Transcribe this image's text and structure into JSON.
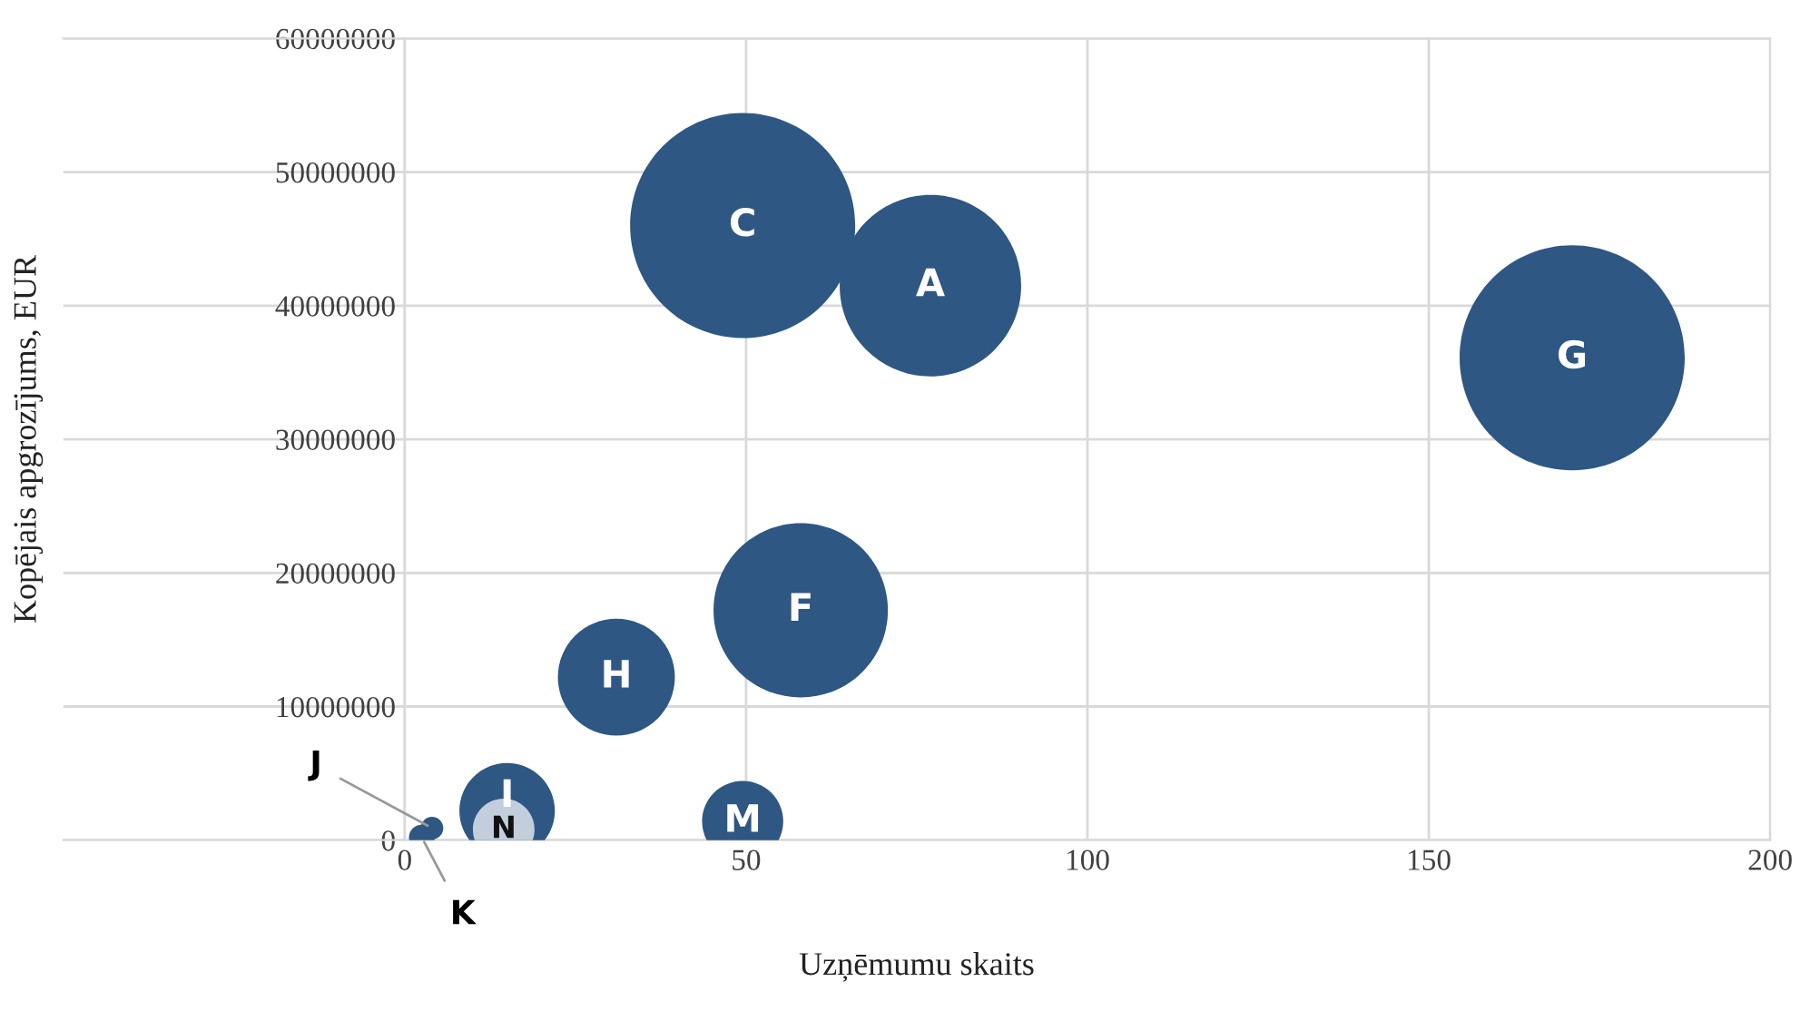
{
  "chart_data": {
    "type": "bubble",
    "xlabel": "Uzņēmumu skaits",
    "ylabel": "Kopējais apgrozījums, EUR",
    "xlim": [
      -50,
      200
    ],
    "xticks": [
      0,
      50,
      100,
      150,
      200
    ],
    "ylim": [
      0,
      60000000
    ],
    "yticks": [
      0,
      10000000,
      20000000,
      30000000,
      40000000,
      50000000,
      60000000
    ],
    "grid": true,
    "legend": false,
    "series": [
      {
        "name": "C",
        "color": "#2e5783",
        "x": [
          49.5
        ],
        "values": [
          46000000
        ],
        "sizes": [
          1
        ]
      },
      {
        "name": "A",
        "color": "#2e5783",
        "x": [
          77
        ],
        "values": [
          41500000
        ],
        "sizes": [
          0.65
        ]
      },
      {
        "name": "G",
        "color": "#2e5783",
        "x": [
          171
        ],
        "values": [
          36100000
        ],
        "sizes": [
          1
        ]
      },
      {
        "name": "F",
        "color": "#2e5783",
        "x": [
          58
        ],
        "values": [
          17200000
        ],
        "sizes": [
          0.6
        ]
      },
      {
        "name": "H",
        "color": "#2e5783",
        "x": [
          31
        ],
        "values": [
          12200000
        ],
        "sizes": [
          0.27
        ]
      },
      {
        "name": "I",
        "color": "#2e5783",
        "x": [
          15
        ],
        "values": [
          2200000
        ],
        "sizes": [
          0.18
        ]
      },
      {
        "name": "N",
        "color": "#e8ecf2",
        "x": [
          14.5
        ],
        "values": [
          800000
        ],
        "sizes": [
          0.075
        ]
      },
      {
        "name": "M",
        "color": "#2e5783",
        "x": [
          49.5
        ],
        "values": [
          1400000
        ],
        "sizes": [
          0.13
        ]
      },
      {
        "name": "J",
        "color": "#2e5783",
        "x": [
          4
        ],
        "values": [
          900000
        ],
        "sizes": [
          0.01
        ]
      },
      {
        "name": "K",
        "color": "#2e5783",
        "x": [
          2.5
        ],
        "values": [
          200000
        ],
        "sizes": [
          0.013
        ]
      }
    ]
  }
}
